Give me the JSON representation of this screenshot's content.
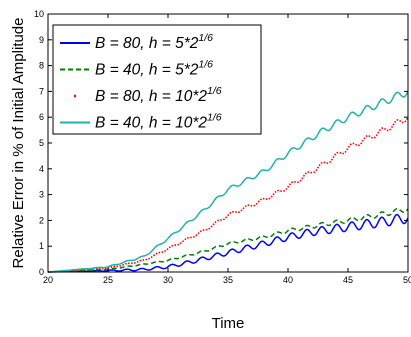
{
  "chart_data": {
    "type": "line",
    "xlabel": "Time",
    "ylabel": "Relative Error in % of Initial Amplitude",
    "xlim": [
      20,
      50
    ],
    "ylim": [
      0,
      10
    ],
    "xticks": [
      "20",
      "25",
      "30",
      "35",
      "40",
      "45",
      "50"
    ],
    "yticks": [
      "0",
      "1",
      "2",
      "3",
      "4",
      "5",
      "6",
      "7",
      "8",
      "9",
      "10"
    ],
    "grid": false,
    "legend_position": "top-left",
    "series": [
      {
        "name_text": "B = 80, h = 5*2",
        "name_sup": "1/6",
        "color": "#0000ff",
        "style": "solid",
        "x": [
          20,
          25,
          28,
          30,
          32,
          35,
          38,
          40,
          42,
          45,
          48,
          50
        ],
        "y": [
          0.0,
          0.05,
          0.1,
          0.2,
          0.4,
          0.75,
          1.1,
          1.35,
          1.55,
          1.75,
          1.95,
          2.1
        ],
        "osc": 0.2
      },
      {
        "name_text": "B = 40, h = 5*2",
        "name_sup": "1/6",
        "color": "#008000",
        "style": "dashed",
        "x": [
          20,
          25,
          28,
          30,
          33,
          35,
          38,
          40,
          43,
          45,
          48,
          50
        ],
        "y": [
          0.0,
          0.1,
          0.3,
          0.45,
          0.8,
          1.1,
          1.35,
          1.6,
          1.85,
          2.0,
          2.25,
          2.45
        ],
        "osc": 0.1
      },
      {
        "name_text": "B = 80, h = 10*2",
        "name_sup": "1/6",
        "color": "#ff0000",
        "style": "dotted",
        "x": [
          20,
          25,
          28,
          30,
          33,
          35,
          38,
          40,
          43,
          45,
          48,
          50
        ],
        "y": [
          0.0,
          0.15,
          0.45,
          0.9,
          1.6,
          2.2,
          2.8,
          3.3,
          4.2,
          4.8,
          5.5,
          6.0
        ],
        "osc": 0.12
      },
      {
        "name_text": "B = 40, h = 10*2",
        "name_sup": "1/6",
        "color": "#20b2aa",
        "style": "solid",
        "x": [
          20,
          25,
          28,
          30,
          33,
          35,
          38,
          40,
          43,
          45,
          48,
          50
        ],
        "y": [
          0.0,
          0.2,
          0.6,
          1.3,
          2.4,
          3.2,
          3.9,
          4.6,
          5.5,
          6.0,
          6.6,
          7.0
        ],
        "osc": 0.15
      }
    ]
  }
}
